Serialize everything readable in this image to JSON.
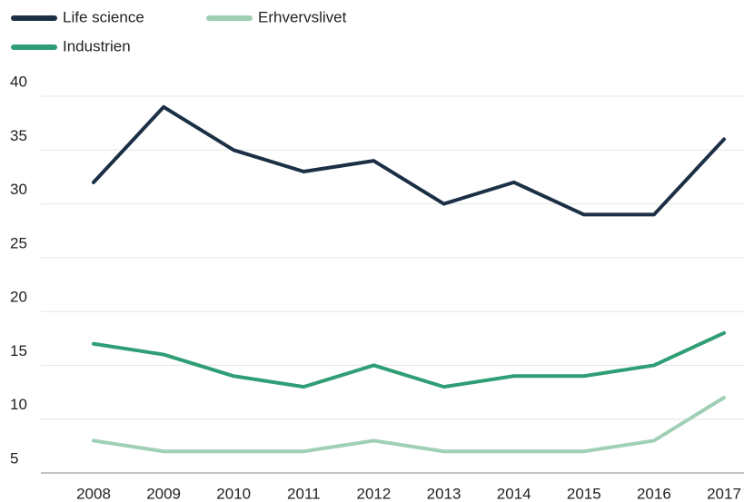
{
  "chart_data": {
    "type": "line",
    "x": [
      2008,
      2009,
      2010,
      2011,
      2012,
      2013,
      2014,
      2015,
      2016,
      2017
    ],
    "xlim": [
      2008,
      2017
    ],
    "xticks": [
      2008,
      2009,
      2010,
      2011,
      2012,
      2013,
      2014,
      2015,
      2016,
      2017
    ],
    "ylim": [
      5,
      40
    ],
    "yticks": [
      5,
      10,
      15,
      20,
      25,
      30,
      35,
      40
    ],
    "grid": true,
    "legend": "top",
    "series": [
      {
        "name": "Life science",
        "color": "#1b2f45",
        "values": [
          32,
          39,
          35,
          33,
          34,
          30,
          32,
          29,
          29,
          36
        ]
      },
      {
        "name": "Erhvervslivet",
        "color": "#9fcfb5",
        "values": [
          8,
          7,
          7,
          7,
          8,
          7,
          7,
          7,
          8,
          12
        ]
      },
      {
        "name": "Industrien",
        "color": "#2f9e74",
        "values": [
          17,
          16,
          14,
          13,
          15,
          13,
          14,
          14,
          15,
          18
        ]
      }
    ]
  }
}
